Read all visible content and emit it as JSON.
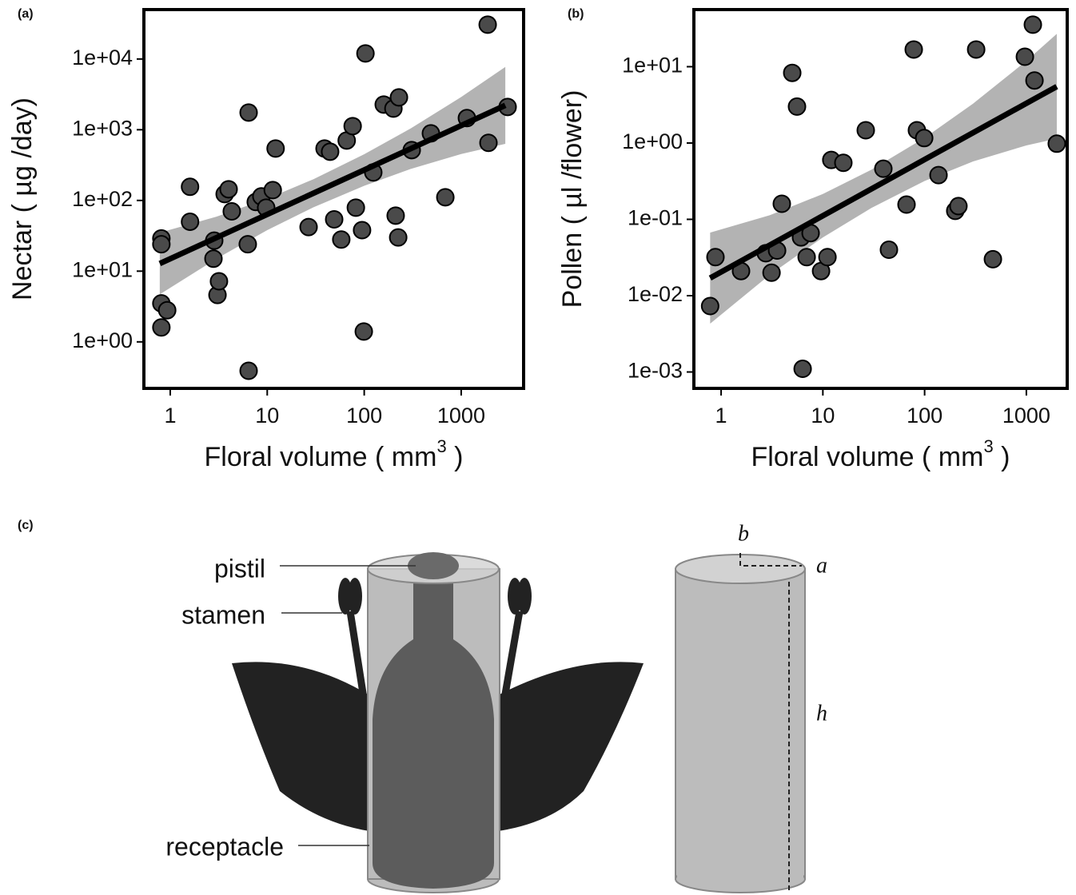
{
  "chart_data": [
    {
      "type": "scatter",
      "panel": "(a)",
      "xlabel": {
        "text": "Floral volume ( mm",
        "superscript": "3",
        "after": " )"
      },
      "ylabel": "Nectar ( µg /day)",
      "xscale": "log",
      "yscale": "log",
      "xlim": [
        0.535,
        4400
      ],
      "ylim": [
        0.22,
        50000
      ],
      "xticks": [
        1,
        10,
        100,
        1000
      ],
      "yticks": [
        {
          "value": 1,
          "label": "1e+00"
        },
        {
          "value": 10,
          "label": "1e+01"
        },
        {
          "value": 100,
          "label": "1e+02"
        },
        {
          "value": 1000,
          "label": "1e+03"
        },
        {
          "value": 10000,
          "label": "1e+04"
        }
      ],
      "color": "#4a4a4a",
      "band_color": "#b3b3b3",
      "line_color": "#000000",
      "x": [
        0.81,
        0.81,
        0.81,
        0.93,
        0.81,
        1.6,
        1.6,
        2.84,
        2.79,
        3.07,
        3.18,
        3.64,
        4.0,
        4.31,
        6.43,
        6.3,
        6.43,
        7.62,
        8.7,
        9.75,
        11.4,
        12.2,
        26.7,
        39,
        44.5,
        49,
        58,
        66,
        76,
        82,
        95,
        99,
        103,
        124,
        159,
        200,
        211,
        224,
        228,
        309,
        487,
        686,
        1145,
        1910,
        1875,
        3010
      ],
      "y": [
        29,
        24,
        3.5,
        2.8,
        1.6,
        156,
        50,
        27,
        15,
        4.6,
        7.2,
        123,
        144,
        70,
        1750,
        24,
        0.39,
        95,
        114,
        79,
        140,
        542,
        42,
        542,
        489,
        54,
        28,
        704,
        1125,
        79,
        38,
        1.4,
        12000,
        249,
        2270,
        1990,
        61,
        30,
        2870,
        515,
        889,
        111,
        1460,
        652,
        30600,
        2100
      ],
      "fit": {
        "x": [
          0.78,
          2850
        ],
        "y": [
          12.8,
          2210
        ]
      },
      "band": {
        "x": [
          0.78,
          3,
          10,
          30,
          100,
          300,
          1000,
          2850
        ],
        "upper": [
          35,
          59,
          106,
          200,
          451,
          1040,
          2900,
          7730
        ],
        "lower": [
          4.7,
          15,
          38,
          80,
          161,
          278,
          453,
          631
        ]
      }
    },
    {
      "type": "scatter",
      "panel": "(b)",
      "xlabel": {
        "text": "Floral volume ( mm",
        "superscript": "3",
        "after": " )"
      },
      "ylabel": "Pollen ( µl /flower)",
      "xscale": "log",
      "yscale": "log",
      "xlim": [
        0.54,
        2520
      ],
      "ylim": [
        0.00061,
        56
      ],
      "xticks": [
        1,
        10,
        100,
        1000
      ],
      "yticks": [
        {
          "value": 0.001,
          "label": "1e-03"
        },
        {
          "value": 0.01,
          "label": "1e-02"
        },
        {
          "value": 0.1,
          "label": "1e-01"
        },
        {
          "value": 1,
          "label": "1e+00"
        },
        {
          "value": 10,
          "label": "1e+01"
        }
      ],
      "color": "#4a4a4a",
      "band_color": "#b3b3b3",
      "line_color": "#000000",
      "x": [
        0.78,
        0.88,
        1.57,
        2.75,
        3.13,
        3.55,
        3.95,
        5.0,
        5.57,
        6.1,
        6.33,
        7.58,
        6.93,
        9.6,
        11.1,
        12.1,
        15.9,
        26.4,
        39.3,
        44.6,
        66.4,
        78.2,
        84,
        99,
        137,
        200,
        215,
        321,
        469,
        967,
        1158,
        1202,
        1990
      ],
      "y": [
        0.0073,
        0.032,
        0.021,
        0.036,
        0.02,
        0.039,
        0.16,
        8.3,
        3.0,
        0.058,
        0.0011,
        0.066,
        0.032,
        0.021,
        0.032,
        0.6,
        0.55,
        1.47,
        0.46,
        0.04,
        0.156,
        16.8,
        1.47,
        1.16,
        0.38,
        0.129,
        0.149,
        16.8,
        0.03,
        13.5,
        35.5,
        6.6,
        0.98
      ],
      "fit": {
        "x": [
          0.78,
          1990
        ],
        "y": [
          0.017,
          5.5
        ]
      },
      "band": {
        "x": [
          0.78,
          3,
          10,
          30,
          100,
          300,
          1000,
          1990
        ],
        "upper": [
          0.067,
          0.113,
          0.215,
          0.447,
          1.17,
          3.29,
          11.9,
          26.9
        ],
        "lower": [
          0.0043,
          0.0187,
          0.058,
          0.141,
          0.318,
          0.574,
          0.93,
          1.14
        ]
      }
    }
  ],
  "diagram": {
    "label": "(c)",
    "parts": [
      "pistil",
      "stamen",
      "receptacle"
    ],
    "dimensions": [
      "b",
      "a",
      "h"
    ]
  }
}
